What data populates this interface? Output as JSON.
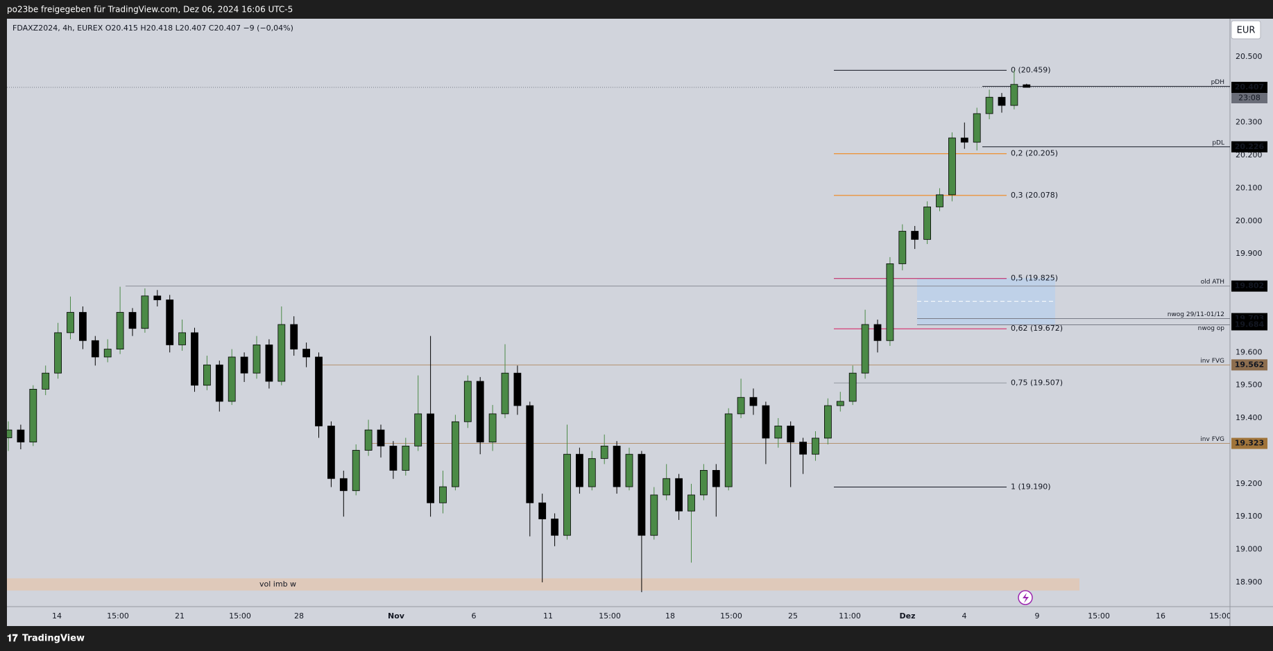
{
  "header": {
    "text": "po23be freigegeben für TradingView.com, Dez 06, 2024 16:06 UTC-5"
  },
  "footer": {
    "brand": "TradingView"
  },
  "chart_data": {
    "type": "candlestick",
    "title": "FDAXZ2024, 4h, EUREX  O20.415  H20.418  L20.407  C20.407  −9 (−0,04%)",
    "currency": "EUR",
    "up_color": "#4b8a46",
    "down_color": "#000000",
    "ylim": [
      18826,
      20616
    ],
    "yticks": [
      {
        "value": 20500,
        "label": "20.500"
      },
      {
        "value": 20300,
        "label": "20.300"
      },
      {
        "value": 20200,
        "label": "20.200"
      },
      {
        "value": 20100,
        "label": "20.100"
      },
      {
        "value": 20000,
        "label": "20.000"
      },
      {
        "value": 19900,
        "label": "19.900"
      },
      {
        "value": 19600,
        "label": "19.600"
      },
      {
        "value": 19500,
        "label": "19.500"
      },
      {
        "value": 19400,
        "label": "19.400"
      },
      {
        "value": 19200,
        "label": "19.200"
      },
      {
        "value": 19100,
        "label": "19.100"
      },
      {
        "value": 19000,
        "label": "19.000"
      },
      {
        "value": 18900,
        "label": "18.900"
      }
    ],
    "x_labels": [
      "14",
      "15:00",
      "21",
      "15:00",
      "28",
      "Nov",
      "6",
      "11",
      "15:00",
      "18",
      "15:00",
      "25",
      "11:00",
      "Dez",
      "4",
      "9",
      "15:00",
      "16",
      "15:00"
    ],
    "open": [
      19340,
      19364,
      19327,
      19488,
      19537,
      19660,
      19722,
      19636,
      19586,
      19610,
      19722,
      19673,
      19772,
      19760,
      19623,
      19660,
      19500,
      19562,
      19451,
      19586,
      19537,
      19623,
      19512,
      19685,
      19610,
      19586,
      19376,
      19216,
      19179,
      19302,
      19364,
      19315,
      19241,
      19315,
      19413,
      19142,
      19191,
      19389,
      19512,
      19327,
      19413,
      19537,
      19438,
      19142,
      19093,
      19043,
      19290,
      19191,
      19277,
      19315,
      19191,
      19290,
      19043,
      19166,
      19216,
      19117,
      19166,
      19241,
      19191,
      19413,
      19463,
      19438,
      19339,
      19376,
      19327,
      19290,
      19339,
      19438,
      19451,
      19537,
      19685,
      19636,
      19870,
      19969,
      19944,
      20043,
      20080,
      20253,
      20240,
      20327,
      20377,
      20352,
      20415
    ],
    "high": [
      19390,
      19380,
      19500,
      19560,
      19690,
      19770,
      19740,
      19650,
      19640,
      19800,
      19735,
      19795,
      19790,
      19775,
      19700,
      19675,
      19590,
      19575,
      19610,
      19600,
      19650,
      19640,
      19740,
      19710,
      19630,
      19600,
      19390,
      19240,
      19320,
      19395,
      19380,
      19330,
      19340,
      19530,
      19650,
      19240,
      19410,
      19530,
      19525,
      19440,
      19625,
      19560,
      19450,
      19170,
      19110,
      19380,
      19310,
      19300,
      19350,
      19330,
      19310,
      19300,
      19190,
      19260,
      19230,
      19200,
      19260,
      19260,
      19430,
      19520,
      19490,
      19450,
      19400,
      19390,
      19340,
      19360,
      19460,
      19480,
      19560,
      19730,
      19700,
      19890,
      19990,
      19985,
      20060,
      20100,
      20270,
      20300,
      20345,
      20400,
      20390,
      20459,
      20418
    ],
    "low": [
      19300,
      19305,
      19315,
      19470,
      19520,
      19640,
      19610,
      19560,
      19570,
      19595,
      19650,
      19660,
      19740,
      19600,
      19605,
      19480,
      19485,
      19420,
      19440,
      19510,
      19520,
      19490,
      19500,
      19590,
      19555,
      19340,
      19190,
      19100,
      19165,
      19285,
      19280,
      19215,
      19225,
      19300,
      19100,
      19110,
      19180,
      19370,
      19290,
      19300,
      19400,
      19410,
      19040,
      18900,
      19010,
      19030,
      19170,
      19180,
      19260,
      19170,
      19180,
      18870,
      19030,
      19150,
      19090,
      18960,
      19150,
      19100,
      19180,
      19400,
      19410,
      19260,
      19310,
      19190,
      19230,
      19270,
      19320,
      19420,
      19440,
      19520,
      19600,
      19620,
      19850,
      19915,
      19930,
      20030,
      20060,
      20220,
      20215,
      20310,
      20330,
      20340,
      20407
    ],
    "close": [
      19364,
      19327,
      19488,
      19537,
      19660,
      19722,
      19636,
      19586,
      19610,
      19722,
      19673,
      19772,
      19760,
      19623,
      19660,
      19500,
      19562,
      19451,
      19586,
      19537,
      19623,
      19512,
      19685,
      19610,
      19586,
      19376,
      19216,
      19179,
      19302,
      19364,
      19315,
      19241,
      19315,
      19413,
      19142,
      19191,
      19389,
      19512,
      19327,
      19413,
      19537,
      19438,
      19142,
      19093,
      19043,
      19290,
      19191,
      19277,
      19315,
      19191,
      19290,
      19043,
      19166,
      19216,
      19117,
      19166,
      19241,
      19191,
      19413,
      19463,
      19438,
      19339,
      19376,
      19327,
      19290,
      19339,
      19438,
      19451,
      19537,
      19685,
      19636,
      19870,
      19969,
      19944,
      20043,
      20080,
      20253,
      20240,
      20327,
      20377,
      20352,
      20416,
      20407
    ],
    "last": {
      "value": 20407,
      "tag": "20.407",
      "countdown": "23:08"
    },
    "levels": [
      {
        "text": "pDH",
        "value": 20410,
        "color": "#131722"
      },
      {
        "text": "pDL",
        "value": 20226,
        "color": "#131722",
        "tag": "20.226",
        "tag_color": "#000000"
      },
      {
        "text": "old ATH",
        "value": 19802,
        "color": "#8a8d96",
        "tag": "19.802",
        "tag_color": "#000000"
      },
      {
        "text": "nwog 29/11-01/12",
        "value": 19703,
        "color": "#787b86",
        "tag": "19.703",
        "tag_color": "#000000"
      },
      {
        "text": "nwog op",
        "value": 19684,
        "color": "#787b86",
        "tag": "19.684",
        "tag_color": "#000000"
      },
      {
        "text": "inv FVG",
        "value": 19562,
        "color": "#b3916f",
        "tag": "19.562",
        "tag_color": "#8d6e4f"
      },
      {
        "text": "inv FVG",
        "value": 19323,
        "color": "#b3916f",
        "tag": "19.323",
        "tag_color": "#a0743a"
      }
    ],
    "fib": [
      {
        "text": "0 (20.459)",
        "value": 20459,
        "color": "#131722"
      },
      {
        "text": "0,2 (20.205)",
        "value": 20205,
        "color": "#f57c00"
      },
      {
        "text": "0,3 (20.078)",
        "value": 20078,
        "color": "#f57c00"
      },
      {
        "text": "0,5 (19.825)",
        "value": 19825,
        "color": "#c2185b"
      },
      {
        "text": "0,62 (19.672)",
        "value": 19672,
        "color": "#d81b60"
      },
      {
        "text": "0,75 (19.507)",
        "value": 19507,
        "color": "#9598a1"
      },
      {
        "text": "1 (19.190)",
        "value": 19190,
        "color": "#131722"
      }
    ],
    "zones": [
      {
        "range": [
          19685,
          19826
        ],
        "color": "#bcd0ea"
      },
      {
        "text": "vol imb w",
        "range": [
          18875,
          18912
        ],
        "color": "#e2c7b4"
      }
    ]
  }
}
